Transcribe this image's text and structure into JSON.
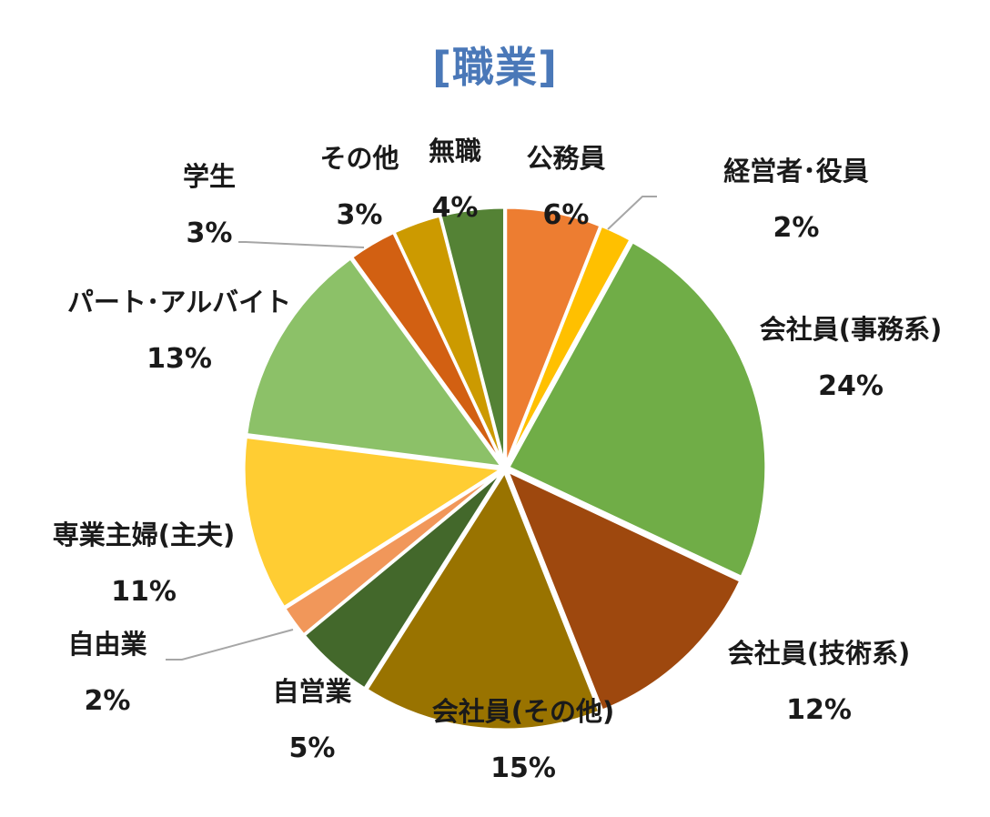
{
  "chart_data": {
    "type": "pie",
    "title": "[職業]",
    "categories": [
      "公務員",
      "経営者･役員",
      "会社員(事務系)",
      "会社員(技術系)",
      "会社員(その他)",
      "自営業",
      "自由業",
      "専業主婦(主夫)",
      "パート･アルバイト",
      "学生",
      "その他",
      "無職"
    ],
    "values": [
      6,
      2,
      24,
      12,
      15,
      5,
      2,
      11,
      13,
      3,
      3,
      4
    ],
    "value_labels": [
      "6%",
      "2%",
      "24%",
      "12%",
      "15%",
      "5%",
      "2%",
      "11%",
      "13%",
      "3%",
      "3%",
      "4%"
    ],
    "colors": [
      "#ed7d31",
      "#ffc000",
      "#70ad47",
      "#9e480e",
      "#997300",
      "#43682b",
      "#f1975a",
      "#ffcd33",
      "#8cc168",
      "#d26012",
      "#cc9a00",
      "#548235"
    ],
    "legend": "none (labels beside slices)",
    "start_angle": "12 o'clock",
    "direction": "clockwise"
  }
}
